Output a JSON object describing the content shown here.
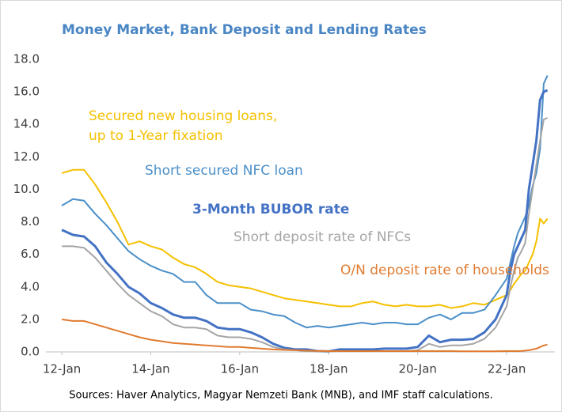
{
  "chart_data": {
    "type": "line",
    "title": "Money Market, Bank Deposit and Lending Rates",
    "source": "Sources: Haver Analytics, Magyar Nemzeti Bank (MNB), and IMF staff calculations.",
    "x": [
      "2012-01",
      "2012-04",
      "2012-07",
      "2012-10",
      "2013-01",
      "2013-04",
      "2013-07",
      "2013-10",
      "2014-01",
      "2014-04",
      "2014-07",
      "2014-10",
      "2015-01",
      "2015-04",
      "2015-07",
      "2015-10",
      "2016-01",
      "2016-04",
      "2016-07",
      "2016-10",
      "2017-01",
      "2017-04",
      "2017-07",
      "2017-10",
      "2018-01",
      "2018-04",
      "2018-07",
      "2018-10",
      "2019-01",
      "2019-04",
      "2019-07",
      "2019-10",
      "2020-01",
      "2020-04",
      "2020-07",
      "2020-10",
      "2021-01",
      "2021-04",
      "2021-07",
      "2021-10",
      "2022-01",
      "2022-02",
      "2022-03",
      "2022-04",
      "2022-05",
      "2022-06",
      "2022-07",
      "2022-08",
      "2022-09",
      "2022-10",
      "2022-11",
      "2022-12"
    ],
    "series": [
      {
        "name": [
          "Secured new housing loans,",
          "up to 1-Year fixation"
        ],
        "color": "#f5c000",
        "values": [
          11.0,
          11.2,
          11.2,
          10.3,
          9.2,
          8.0,
          6.6,
          6.8,
          6.5,
          6.3,
          5.8,
          5.4,
          5.2,
          4.8,
          4.3,
          4.1,
          4.0,
          3.9,
          3.7,
          3.5,
          3.3,
          3.2,
          3.1,
          3.0,
          2.9,
          2.8,
          2.8,
          3.0,
          3.1,
          2.9,
          2.8,
          2.9,
          2.8,
          2.8,
          2.9,
          2.7,
          2.8,
          3.0,
          2.9,
          3.2,
          3.5,
          3.8,
          4.2,
          4.5,
          4.8,
          5.0,
          5.5,
          6.0,
          6.8,
          8.2,
          7.9,
          8.2
        ]
      },
      {
        "name": [
          "Short secured NFC loan"
        ],
        "color": "#4a8fc8",
        "values": [
          9.0,
          9.4,
          9.3,
          8.5,
          7.8,
          7.0,
          6.2,
          5.7,
          5.3,
          5.0,
          4.8,
          4.3,
          4.3,
          3.5,
          3.0,
          3.0,
          3.0,
          2.6,
          2.5,
          2.3,
          2.2,
          1.8,
          1.5,
          1.6,
          1.5,
          1.6,
          1.7,
          1.8,
          1.7,
          1.8,
          1.8,
          1.7,
          1.7,
          2.1,
          2.3,
          2.0,
          2.4,
          2.4,
          2.6,
          3.5,
          4.5,
          5.5,
          6.5,
          7.3,
          7.8,
          8.3,
          9.0,
          10.2,
          11.0,
          12.5,
          16.5,
          17.0
        ]
      },
      {
        "name": [
          "3-Month BUBOR  rate"
        ],
        "color": "#4472c4",
        "values": [
          7.5,
          7.2,
          7.1,
          6.5,
          5.5,
          4.8,
          4.0,
          3.6,
          3.0,
          2.7,
          2.3,
          2.1,
          2.1,
          1.9,
          1.5,
          1.4,
          1.4,
          1.2,
          0.9,
          0.5,
          0.25,
          0.15,
          0.15,
          0.05,
          0.03,
          0.15,
          0.15,
          0.15,
          0.15,
          0.2,
          0.2,
          0.2,
          0.3,
          1.0,
          0.6,
          0.75,
          0.75,
          0.8,
          1.2,
          2.0,
          3.5,
          5.0,
          6.0,
          6.5,
          7.0,
          7.5,
          10.0,
          11.5,
          13.0,
          15.5,
          16.0,
          16.1
        ]
      },
      {
        "name": [
          "Short deposit rate of NFCs"
        ],
        "color": "#a5a5a5",
        "values": [
          6.5,
          6.5,
          6.4,
          5.8,
          5.0,
          4.2,
          3.5,
          3.0,
          2.5,
          2.2,
          1.7,
          1.5,
          1.5,
          1.4,
          1.0,
          0.9,
          0.9,
          0.8,
          0.6,
          0.3,
          0.15,
          0.1,
          0.05,
          0.03,
          0.02,
          0.05,
          0.05,
          0.05,
          0.05,
          0.05,
          0.05,
          0.05,
          0.1,
          0.5,
          0.3,
          0.4,
          0.4,
          0.5,
          0.8,
          1.5,
          2.8,
          4.0,
          5.0,
          5.8,
          6.2,
          6.7,
          8.5,
          10.0,
          11.5,
          13.0,
          14.3,
          14.4
        ]
      },
      {
        "name": [
          "O/N deposit rate of households"
        ],
        "color": "#e07b30",
        "values": [
          2.0,
          1.9,
          1.9,
          1.7,
          1.5,
          1.3,
          1.1,
          0.9,
          0.75,
          0.65,
          0.55,
          0.5,
          0.45,
          0.4,
          0.35,
          0.3,
          0.3,
          0.25,
          0.2,
          0.15,
          0.12,
          0.1,
          0.08,
          0.06,
          0.05,
          0.05,
          0.05,
          0.05,
          0.05,
          0.05,
          0.05,
          0.05,
          0.05,
          0.05,
          0.05,
          0.05,
          0.04,
          0.04,
          0.04,
          0.04,
          0.05,
          0.05,
          0.05,
          0.05,
          0.06,
          0.08,
          0.1,
          0.15,
          0.2,
          0.3,
          0.4,
          0.45
        ]
      }
    ],
    "xlim": [
      "2011-10",
      "2023-02"
    ],
    "xticks": [
      {
        "value": "2012-01",
        "label": "12-Jan"
      },
      {
        "value": "2014-01",
        "label": "14-Jan"
      },
      {
        "value": "2016-01",
        "label": "16-Jan"
      },
      {
        "value": "2018-01",
        "label": "18-Jan"
      },
      {
        "value": "2020-01",
        "label": "20-Jan"
      },
      {
        "value": "2022-01",
        "label": "22-Jan"
      }
    ],
    "ylim": [
      0,
      18
    ],
    "yticks": [
      {
        "value": 0,
        "label": "0.0"
      },
      {
        "value": 2,
        "label": "2.0"
      },
      {
        "value": 4,
        "label": "4.0"
      },
      {
        "value": 6,
        "label": "6.0"
      },
      {
        "value": 8,
        "label": "8.0"
      },
      {
        "value": 10,
        "label": "10.0"
      },
      {
        "value": 12,
        "label": "12.0"
      },
      {
        "value": 14,
        "label": "14.0"
      },
      {
        "value": 16,
        "label": "16.0"
      },
      {
        "value": 18,
        "label": "18.0"
      }
    ],
    "grid": false
  }
}
